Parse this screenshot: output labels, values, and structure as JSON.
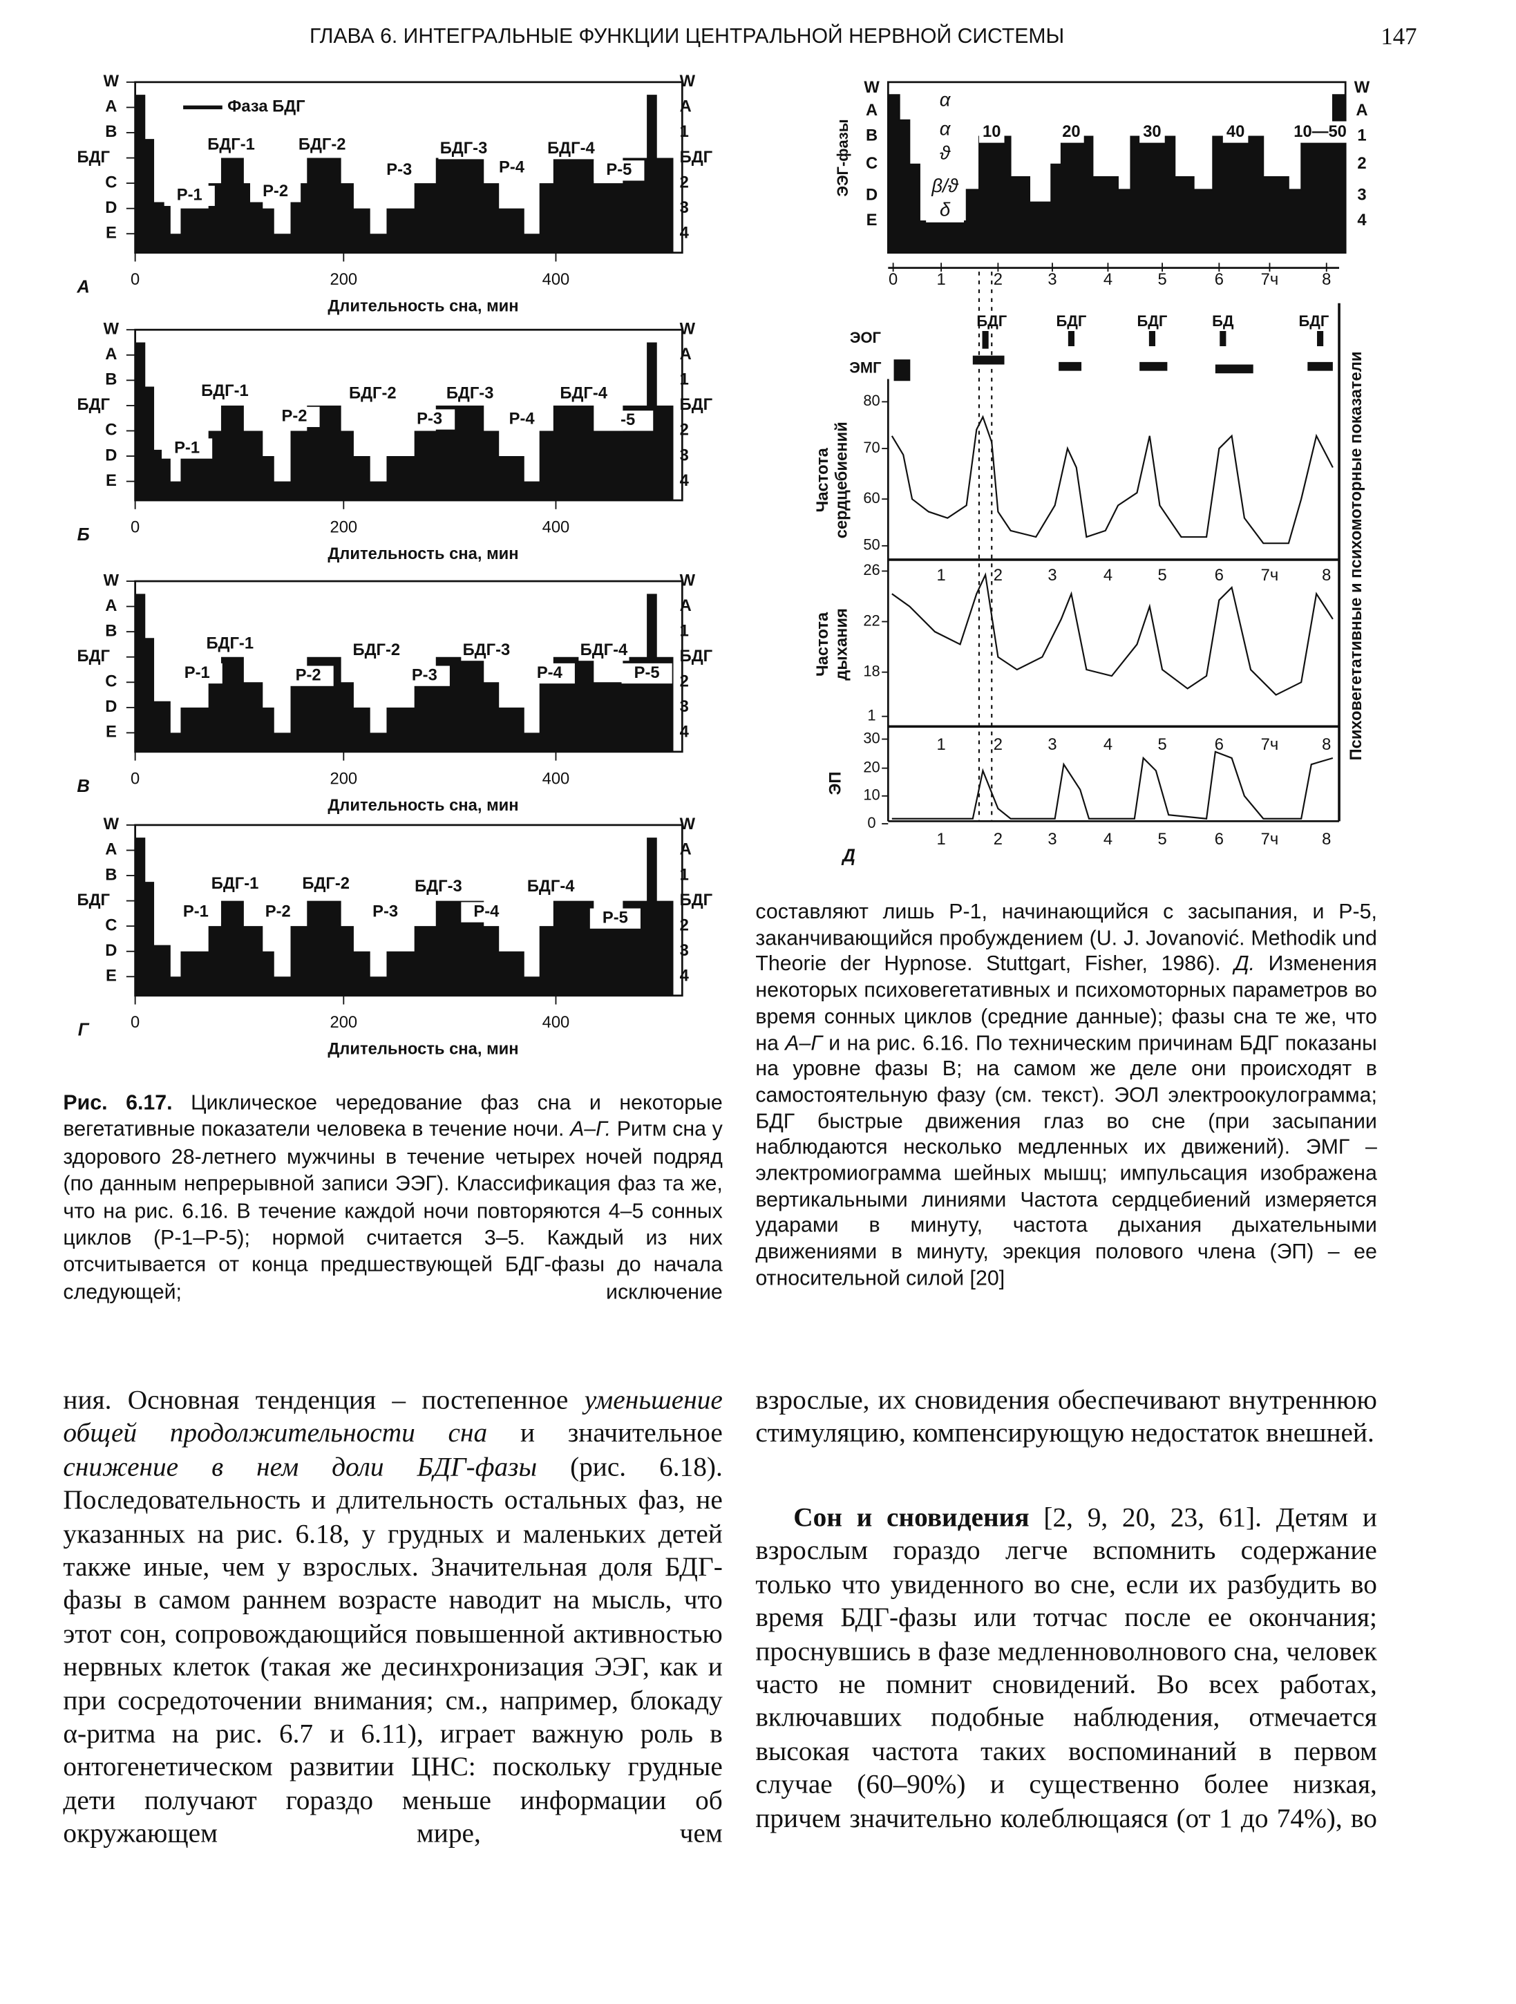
{
  "header": {
    "running_title": "ГЛАВА 6. ИНТЕГРАЛЬНЫЕ ФУНКЦИИ ЦЕНТРАЛЬНОЙ НЕРВНОЙ СИСТЕМЫ",
    "page_number": "147"
  },
  "figure": {
    "stage_labels_left": [
      "W",
      "A",
      "B",
      "БДГ",
      "C",
      "D",
      "E"
    ],
    "stage_labels_right": [
      "W",
      "A",
      "1",
      "БДГ",
      "2",
      "3",
      "4"
    ],
    "x_ticks": [
      "0",
      "200",
      "400"
    ],
    "x_label": "Длительность сна, мин",
    "legend": "Фаза БДГ",
    "panels": [
      {
        "letter": "А",
        "annotations": [
          "БДГ-1",
          "БДГ-2",
          "БДГ-3",
          "БДГ-4",
          "Р-1",
          "Р-2",
          "Р-3",
          "Р-4",
          "Р-5"
        ]
      },
      {
        "letter": "Б",
        "annotations": [
          "БДГ-1",
          "Р-1",
          "Р-2",
          "БДГ-2",
          "БДГ-3",
          "Р-3",
          "Р-4",
          "БДГ-4",
          "-5"
        ]
      },
      {
        "letter": "В",
        "annotations": [
          "БДГ-1",
          "Р-1",
          "Р-2",
          "БДГ-2",
          "БДГ-3",
          "Р-3",
          "Р-4",
          "БДГ-4",
          "Р-5"
        ]
      },
      {
        "letter": "Г",
        "annotations": [
          "БДГ-1",
          "Р-1",
          "Р-2",
          "БДГ-2",
          "Р-3",
          "БДГ-3",
          "Р-4",
          "БДГ-4",
          "Р-5"
        ]
      }
    ],
    "panel_d": {
      "letter": "Д",
      "eeg_axis_title": "ЭЭГ-фазы",
      "left_stages": [
        "W",
        "A",
        "B",
        "C",
        "D",
        "E"
      ],
      "right_stages": [
        "W",
        "A",
        "1",
        "2",
        "3",
        "4"
      ],
      "rhythms": [
        "α",
        "α",
        "ϑ",
        "β/ϑ",
        "δ"
      ],
      "cycle_minutes": [
        "10",
        "20",
        "30",
        "40",
        "10—50"
      ],
      "hours": [
        "0",
        "1",
        "2",
        "3",
        "4",
        "5",
        "6",
        "7ч",
        "8"
      ],
      "rem_marks": [
        "БДГ",
        "БДГ",
        "БДГ",
        "БД",
        "БДГ"
      ],
      "eog": "ЭОГ",
      "emg": "ЭМГ",
      "hr_title": [
        "Частота",
        "сердцебиений"
      ],
      "hr_ticks": [
        "80",
        "70",
        "60",
        "50"
      ],
      "resp_title": [
        "Частота",
        "дыхания"
      ],
      "resp_ticks": [
        "26",
        "22",
        "18",
        "1"
      ],
      "ep_title": "ЭП",
      "ep_ticks": [
        "30",
        "20",
        "10",
        "0"
      ],
      "side_title": "Психовегетативные и психомоторные показатели"
    },
    "caption_left": {
      "runs": [
        {
          "text": "Рис. 6.17.",
          "style": "bold"
        },
        {
          "text": " Циклическое чередование фаз сна и некоторые вегетативные показатели человека в течение ночи. ",
          "style": "normal"
        },
        {
          "text": "А–Г.",
          "style": "italic"
        },
        {
          "text": " Ритм сна у здорового 28-летнего мужчины в течение четырех ночей подряд (по данным непрерывной записи ЭЭГ). Классификация фаз та же, что на рис. 6.16. В течение каждой ночи повторяются 4–5 сонных циклов (Р-1–Р-5); нормой считается 3–5. Каждый из них отсчитывается от конца предшествующей БДГ-фазы до начала следующей; исключение",
          "style": "normal"
        }
      ]
    },
    "caption_right": {
      "runs": [
        {
          "text": "составляют лишь Р-1, начинающийся с засыпания, и Р-5, заканчивающийся пробуждением (U. J. Jovanović. Methodik und Theorie der Hypnose. Stuttgart, Fisher, 1986). ",
          "style": "normal"
        },
        {
          "text": "Д.",
          "style": "italic"
        },
        {
          "text": " Изменения некоторых психовегетативных и психомоторных параметров во время сонных циклов (средние данные); фазы сна те же, что на ",
          "style": "normal"
        },
        {
          "text": "А–Г",
          "style": "italic"
        },
        {
          "text": " и на рис. 6.16. По техническим причинам БДГ показаны на уровне фазы В; на самом же деле они происходят в самостоятельную фазу (см. текст). ЭОЛ электроокулограмма; БДГ быстрые движения глаз во сне (при засыпании наблюдаются несколько медленных их движений). ЭМГ – электромиограмма шейных мышц; импульсация изображена вертикальными линиями Частота сердцебиений измеряется ударами в минуту, частота дыхания дыхательными движениями в минуту, эрекция полового члена (ЭП) – ее относительной силой [20]",
          "style": "normal"
        }
      ]
    }
  },
  "body": {
    "left": [
      {
        "runs": [
          {
            "text": "ния. Основная тенденция – постепенное ",
            "style": "normal"
          },
          {
            "text": "уменьшение общей продолжительности сна",
            "style": "italic"
          },
          {
            "text": " и значительное ",
            "style": "normal"
          },
          {
            "text": "снижение в нем доли БДГ-фазы",
            "style": "italic"
          },
          {
            "text": " (рис. 6.18). Последовательность и длительность остальных фаз, не указанных на рис. 6.18, у грудных и маленьких детей также иные, чем у взрослых. Значительная доля БДГ-фазы в самом раннем возрасте наводит на мысль, что этот сон, сопровождающийся повышенной активностью нервных клеток (такая же десинхронизация ЭЭГ, как и при сосредоточении внимания; см., например, блокаду α-ритма на рис. 6.7 и 6.11), играет важную роль в онтогенетическом развитии ЦНС: поскольку грудные дети получают гораздо меньше информации об окружающем мире, чем",
            "style": "normal"
          }
        ]
      }
    ],
    "right": [
      {
        "runs": [
          {
            "text": "взрослые, их сновидения обеспечивают внутреннюю стимуляцию, компенсирующую недостаток внешней.",
            "style": "normal"
          }
        ]
      },
      {
        "runs": [
          {
            "text": "Сон и сновидения",
            "style": "bold"
          },
          {
            "text": " [2, 9, 20, 23, 61]. Детям и взрослым гораздо легче вспомнить содержание только что увиденного во сне, если их разбудить во время БДГ-фазы или тотчас после ее окончания; проснувшись в фазе медленноволнового сна, человек часто не помнит сновидений. Во всех работах, включавших подобные наблюдения, отмечается высокая частота таких воспоминаний в первом случае (60–90%) и существенно более низкая, причем значительно колеблющаяся (от 1 до 74%), во",
            "style": "normal"
          }
        ]
      }
    ]
  }
}
